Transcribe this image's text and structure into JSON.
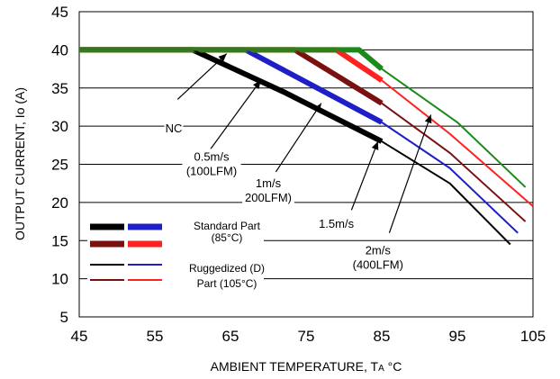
{
  "chart_data": {
    "type": "line",
    "xlabel": "AMBIENT TEMPERATURE, T",
    "xlabel_sub": "A",
    "xlabel_unit": " °C",
    "ylabel": "OUTPUT CURRENT, Io (A)",
    "xlim": [
      45,
      105
    ],
    "ylim": [
      5,
      45
    ],
    "xticks": [
      45,
      55,
      65,
      75,
      85,
      95,
      105
    ],
    "yticks": [
      5,
      10,
      15,
      20,
      25,
      30,
      35,
      40,
      45
    ],
    "grid": "horizontal",
    "colors": {
      "black": "#000000",
      "blue": "#1f1fc8",
      "brown": "#7a1010",
      "red": "#ff2020",
      "green": "#1a8a1a"
    },
    "series": [
      {
        "color": "black",
        "weight": "thick",
        "x": [
          45,
          60,
          72,
          85
        ],
        "y": [
          40,
          40,
          34.5,
          28
        ]
      },
      {
        "color": "blue",
        "weight": "thick",
        "x": [
          45,
          67,
          85
        ],
        "y": [
          40,
          40,
          30.5
        ]
      },
      {
        "color": "brown",
        "weight": "thick",
        "x": [
          45,
          73.5,
          85
        ],
        "y": [
          40,
          40,
          33
        ]
      },
      {
        "color": "red",
        "weight": "thick",
        "x": [
          45,
          79,
          85
        ],
        "y": [
          40,
          40,
          36
        ]
      },
      {
        "color": "green",
        "weight": "thick",
        "x": [
          45,
          82,
          85
        ],
        "y": [
          40,
          40,
          37.5
        ]
      },
      {
        "color": "black",
        "weight": "thin",
        "x": [
          45,
          60,
          72,
          85,
          94,
          102
        ],
        "y": [
          40,
          40,
          34.5,
          28,
          22.5,
          14.5
        ]
      },
      {
        "color": "blue",
        "weight": "thin",
        "x": [
          45,
          67,
          85,
          94,
          103
        ],
        "y": [
          40,
          40,
          30.5,
          24.5,
          16
        ]
      },
      {
        "color": "brown",
        "weight": "thin",
        "x": [
          45,
          73.5,
          85,
          94,
          104
        ],
        "y": [
          40,
          40,
          33,
          26.5,
          17.5
        ]
      },
      {
        "color": "red",
        "weight": "thin",
        "x": [
          45,
          79,
          85,
          94,
          105
        ],
        "y": [
          40,
          40,
          36,
          29,
          19.5
        ]
      },
      {
        "color": "green",
        "weight": "thin",
        "x": [
          45,
          82,
          85,
          95,
          104
        ],
        "y": [
          40,
          40,
          37.5,
          30.5,
          22
        ]
      }
    ],
    "annotations": [
      {
        "lines": [
          "NC"
        ],
        "label_at": [
          57.5,
          29.2
        ],
        "arrow_from": [
          58,
          33.5
        ],
        "arrow_to": [
          64.5,
          39.5
        ]
      },
      {
        "lines": [
          "0.5m/s",
          "(100LFM)"
        ],
        "label_at": [
          62.5,
          25.5
        ],
        "arrow_from": [
          62,
          26.5
        ],
        "arrow_to": [
          69,
          36
        ]
      },
      {
        "lines": [
          "1m/s",
          "200LFM)"
        ],
        "label_at": [
          70,
          22
        ],
        "arrow_from": [
          71,
          24
        ],
        "arrow_to": [
          77,
          33
        ]
      },
      {
        "lines": [
          "1.5m/s"
        ],
        "label_at": [
          79,
          16.7
        ],
        "arrow_from": [
          81,
          19
        ],
        "arrow_to": [
          84.5,
          28
        ]
      },
      {
        "lines": [
          "2m/s",
          "(400LFM)"
        ],
        "label_at": [
          84.5,
          13.2
        ],
        "arrow_from": [
          86,
          16
        ],
        "arrow_to": [
          91.5,
          31.5
        ]
      }
    ],
    "legend": {
      "position": "lower-left",
      "entries": [
        {
          "lines": [
            "Standard Part",
            "(85°C)"
          ],
          "swatches": [
            "black",
            "blue",
            "brown",
            "red"
          ],
          "weight": "thick"
        },
        {
          "lines": [
            "Ruggedized (D)",
            "Part (105°C)"
          ],
          "swatches": [
            "black",
            "blue",
            "brown",
            "red"
          ],
          "weight": "thin"
        }
      ]
    }
  }
}
